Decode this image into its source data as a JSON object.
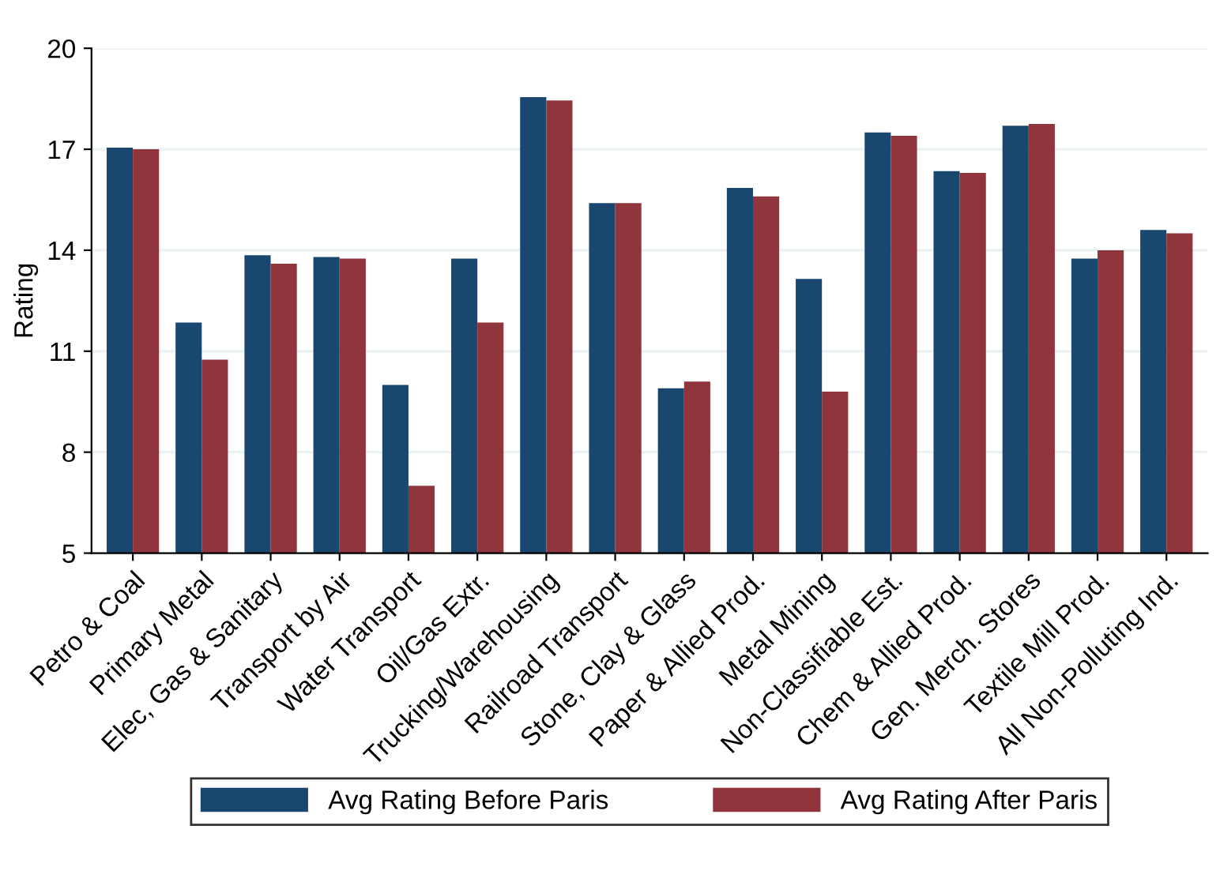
{
  "chart_data": {
    "type": "bar",
    "ylabel": "Rating",
    "categories": [
      "Petro & Coal",
      "Primary Metal",
      "Elec, Gas & Sanitary",
      "Transport by Air",
      "Water Transport",
      "Oil/Gas Extr.",
      "Trucking/Warehousing",
      "Railroad Transport",
      "Stone, Clay & Glass",
      "Paper & Allied Prod.",
      "Metal Mining",
      "Non-Classifiable Est.",
      "Chem & Allied Prod.",
      "Gen. Merch. Stores",
      "Textile Mill Prod.",
      "All Non-Polluting Ind."
    ],
    "series": [
      {
        "name": "Avg Rating Before Paris",
        "color": "#1a476f",
        "values": [
          17.05,
          11.85,
          13.85,
          13.8,
          10.0,
          13.75,
          18.55,
          15.4,
          9.9,
          15.85,
          13.15,
          17.5,
          16.35,
          17.7,
          13.75,
          14.6
        ]
      },
      {
        "name": "Avg Rating After Paris",
        "color": "#90353b",
        "values": [
          17.0,
          10.75,
          13.6,
          13.75,
          7.0,
          11.85,
          18.45,
          15.4,
          10.1,
          15.6,
          9.8,
          17.4,
          16.3,
          17.75,
          14.0,
          14.5
        ]
      }
    ],
    "ylim": [
      5,
      20
    ],
    "yticks": [
      5,
      8,
      11,
      14,
      17,
      20
    ],
    "grid": "y",
    "legend": "bottom"
  }
}
